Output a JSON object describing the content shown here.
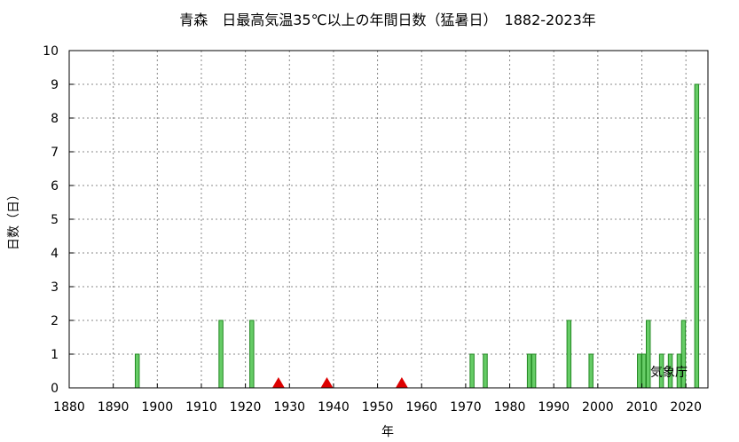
{
  "chart_data": {
    "type": "bar",
    "title": "青森　日最高気温35℃以上の年間日数（猛暑日）　1882-2023年",
    "xlabel": "年",
    "ylabel": "日数（日）",
    "xlim": [
      1880,
      2025
    ],
    "ylim": [
      0,
      10
    ],
    "x_ticks": [
      1880,
      1890,
      1900,
      1910,
      1920,
      1930,
      1940,
      1950,
      1960,
      1970,
      1980,
      1990,
      2000,
      2010,
      2020
    ],
    "y_ticks": [
      0,
      1,
      2,
      3,
      4,
      5,
      6,
      7,
      8,
      9,
      10
    ],
    "grid": true,
    "bar_color": "#66cc66",
    "bar_edge_color": "#228822",
    "marker_color": "#dd0000",
    "series": [
      {
        "x": [
          1895,
          1914,
          1921,
          1971,
          1974,
          1984,
          1985,
          1993,
          1998,
          2009,
          2010,
          2011,
          2014,
          2016,
          2018,
          2019,
          2022
        ],
        "values": [
          1,
          2,
          2,
          1,
          1,
          1,
          1,
          2,
          1,
          1,
          1,
          2,
          1,
          1,
          1,
          2,
          9
        ]
      }
    ],
    "markers": [
      1927,
      1938,
      1955
    ],
    "credit": "気象庁"
  }
}
